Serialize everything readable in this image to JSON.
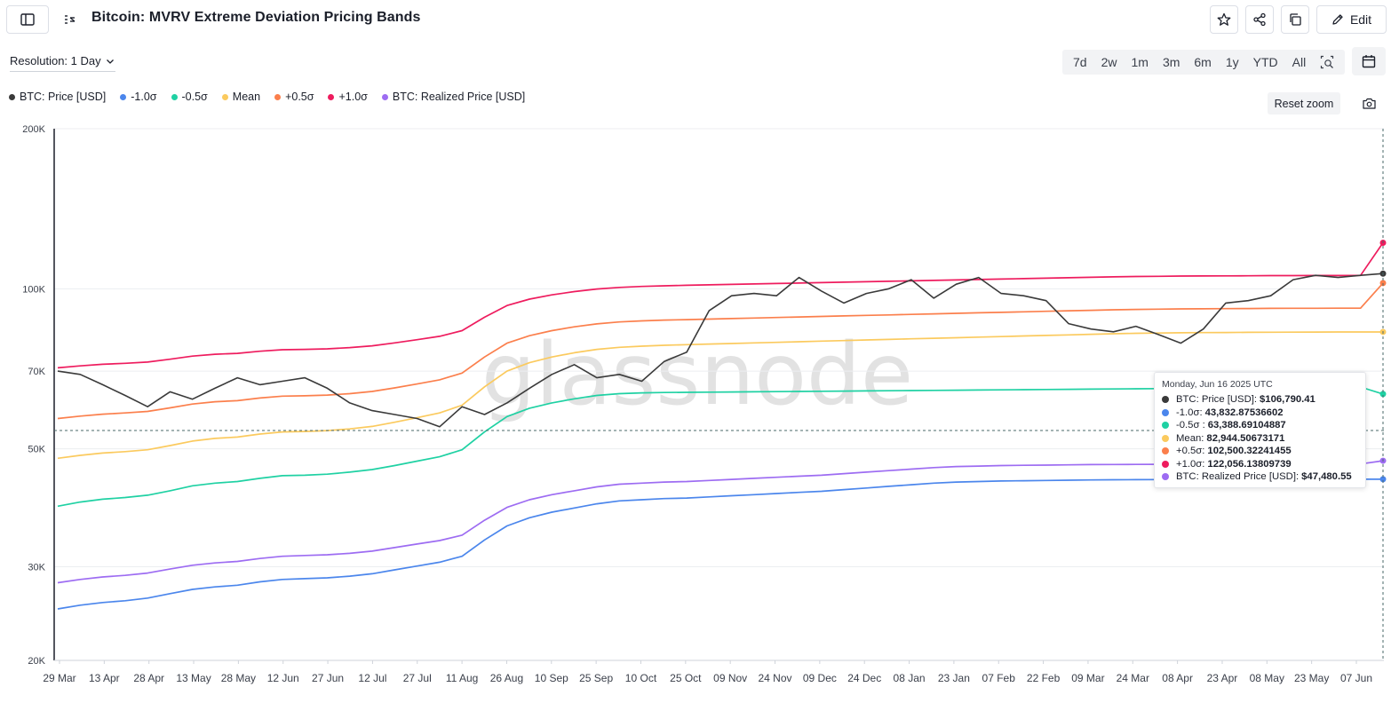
{
  "header": {
    "title": "Bitcoin: MVRV Extreme Deviation Pricing Bands",
    "edit_label": "Edit"
  },
  "toolbar": {
    "resolution_label": "Resolution: 1 Day",
    "ranges": [
      "7d",
      "2w",
      "1m",
      "3m",
      "6m",
      "1y",
      "YTD",
      "All"
    ],
    "reset_zoom_label": "Reset zoom"
  },
  "watermark": "glassnode",
  "tooltip": {
    "date": "Monday, Jun 16 2025 UTC",
    "rows": [
      {
        "label": "BTC: Price [USD]",
        "value": "$106,790.41",
        "color": "#3a3a3a"
      },
      {
        "label": "-1.0σ",
        "value": "43,832.87536602",
        "color": "#4b86ec"
      },
      {
        "label": "-0.5σ ",
        "value": "63,388.69104887",
        "color": "#1fd1a3"
      },
      {
        "label": "Mean",
        "value": "82,944.50673171",
        "color": "#fbca5e"
      },
      {
        "label": "+0.5σ",
        "value": "102,500.32241455",
        "color": "#fb7f4c"
      },
      {
        "label": "+1.0σ",
        "value": "122,056.13809739",
        "color": "#ee1c5e"
      },
      {
        "label": "BTC: Realized Price [USD]",
        "value": "$47,480.55",
        "color": "#9d6cf2"
      }
    ]
  },
  "chart_data": {
    "type": "line",
    "log_scale": true,
    "ylim": [
      20000,
      200000
    ],
    "y_ticks": [
      {
        "value": 20000,
        "label": "20K"
      },
      {
        "value": 30000,
        "label": "30K"
      },
      {
        "value": 50000,
        "label": "50K"
      },
      {
        "value": 70000,
        "label": "70K"
      },
      {
        "value": 100000,
        "label": "100K"
      },
      {
        "value": 200000,
        "label": "200K"
      }
    ],
    "x_tick_labels": [
      "29 Mar",
      "13 Apr",
      "28 Apr",
      "13 May",
      "28 May",
      "12 Jun",
      "27 Jun",
      "12 Jul",
      "27 Jul",
      "11 Aug",
      "26 Aug",
      "10 Sep",
      "25 Sep",
      "10 Oct",
      "25 Oct",
      "09 Nov",
      "24 Nov",
      "09 Dec",
      "24 Dec",
      "08 Jan",
      "23 Jan",
      "07 Feb",
      "22 Feb",
      "09 Mar",
      "24 Mar",
      "08 Apr",
      "23 Apr",
      "08 May",
      "23 May",
      "07 Jun"
    ],
    "x_range": [
      "29 Mar",
      "16 Jun"
    ],
    "grid": true,
    "legend_position": "top-left",
    "series": [
      {
        "name": "BTC: Price [USD]",
        "color": "#3a3a3a",
        "values": [
          70000,
          69000,
          66000,
          63000,
          60000,
          64000,
          62000,
          65000,
          68000,
          66000,
          67000,
          68000,
          65000,
          61000,
          59000,
          58000,
          57000,
          55000,
          60000,
          58000,
          61000,
          65000,
          69000,
          72000,
          68000,
          69000,
          67000,
          73000,
          76000,
          91000,
          97000,
          98000,
          97000,
          105000,
          99000,
          94000,
          98000,
          100000,
          104000,
          96000,
          102000,
          105000,
          98000,
          97000,
          95000,
          86000,
          84000,
          83000,
          85000,
          82000,
          79000,
          84000,
          94000,
          95000,
          97000,
          104000,
          106000,
          105000,
          106000,
          106790
        ]
      },
      {
        "name": "-1.0σ",
        "color": "#4b86ec",
        "values": [
          25000,
          25400,
          25700,
          25900,
          26200,
          26700,
          27200,
          27500,
          27700,
          28100,
          28400,
          28500,
          28600,
          28800,
          29100,
          29600,
          30100,
          30600,
          31400,
          33700,
          35800,
          37100,
          38000,
          38700,
          39400,
          39900,
          40100,
          40300,
          40400,
          40600,
          40800,
          41000,
          41200,
          41400,
          41600,
          41900,
          42200,
          42500,
          42800,
          43100,
          43300,
          43400,
          43500,
          43550,
          43600,
          43650,
          43700,
          43720,
          43740,
          43760,
          43780,
          43790,
          43800,
          43810,
          43815,
          43820,
          43825,
          43828,
          43830,
          43833
        ]
      },
      {
        "name": "-0.5σ",
        "color": "#1fd1a3",
        "values": [
          39000,
          39700,
          40200,
          40500,
          40900,
          41700,
          42600,
          43100,
          43400,
          44000,
          44500,
          44600,
          44800,
          45200,
          45700,
          46500,
          47400,
          48300,
          49800,
          53800,
          57500,
          59600,
          61000,
          62100,
          63000,
          63500,
          63700,
          63800,
          63850,
          63900,
          63950,
          64000,
          64050,
          64100,
          64150,
          64200,
          64250,
          64300,
          64350,
          64400,
          64450,
          64500,
          64550,
          64600,
          64650,
          64700,
          64750,
          64800,
          64850,
          64900,
          64950,
          65000,
          65050,
          65100,
          65150,
          65200,
          65250,
          65300,
          65350,
          63389
        ]
      },
      {
        "name": "Mean",
        "color": "#fbca5e",
        "values": [
          48000,
          48600,
          49100,
          49400,
          49800,
          50700,
          51700,
          52300,
          52600,
          53300,
          53800,
          53900,
          54100,
          54500,
          55100,
          56100,
          57200,
          58400,
          60400,
          65400,
          70000,
          72600,
          74400,
          75800,
          76900,
          77600,
          78000,
          78300,
          78500,
          78700,
          78900,
          79100,
          79300,
          79500,
          79700,
          79900,
          80100,
          80300,
          80500,
          80700,
          80900,
          81100,
          81300,
          81500,
          81700,
          81900,
          82100,
          82300,
          82450,
          82550,
          82650,
          82700,
          82750,
          82800,
          82850,
          82880,
          82900,
          82920,
          82935,
          82945
        ]
      },
      {
        "name": "+0.5σ",
        "color": "#fb7f4c",
        "values": [
          57000,
          57600,
          58100,
          58400,
          58800,
          59700,
          60700,
          61300,
          61600,
          62300,
          62800,
          62900,
          63100,
          63500,
          64100,
          65100,
          66200,
          67400,
          69400,
          74400,
          79000,
          81600,
          83400,
          84800,
          85900,
          86600,
          87000,
          87300,
          87500,
          87700,
          87900,
          88100,
          88300,
          88500,
          88700,
          88900,
          89100,
          89300,
          89500,
          89700,
          89900,
          90100,
          90300,
          90500,
          90700,
          90900,
          91100,
          91300,
          91450,
          91550,
          91650,
          91700,
          91750,
          91800,
          91850,
          91880,
          91900,
          91920,
          91935,
          102500
        ]
      },
      {
        "name": "+1.0σ",
        "color": "#ee1c5e",
        "values": [
          71000,
          71600,
          72100,
          72400,
          72800,
          73700,
          74700,
          75300,
          75600,
          76300,
          76800,
          76900,
          77100,
          77500,
          78100,
          79100,
          80200,
          81400,
          83400,
          88400,
          93000,
          95600,
          97400,
          98800,
          99900,
          100600,
          101000,
          101300,
          101500,
          101700,
          101900,
          102100,
          102300,
          102500,
          102700,
          102900,
          103100,
          103300,
          103500,
          103700,
          103900,
          104100,
          104300,
          104500,
          104700,
          104900,
          105100,
          105300,
          105450,
          105550,
          105650,
          105700,
          105750,
          105800,
          105850,
          105880,
          105900,
          105920,
          105935,
          122056
        ]
      },
      {
        "name": "BTC: Realized Price [USD]",
        "color": "#9d6cf2",
        "values": [
          28000,
          28400,
          28700,
          28900,
          29200,
          29700,
          30200,
          30500,
          30700,
          31100,
          31400,
          31500,
          31600,
          31800,
          32100,
          32600,
          33100,
          33600,
          34400,
          36700,
          38800,
          40100,
          41000,
          41700,
          42400,
          42900,
          43100,
          43300,
          43400,
          43600,
          43800,
          44000,
          44200,
          44400,
          44600,
          44900,
          45200,
          45500,
          45800,
          46100,
          46300,
          46400,
          46500,
          46550,
          46600,
          46650,
          46700,
          46720,
          46740,
          46760,
          46780,
          46790,
          46800,
          46810,
          46815,
          46820,
          46825,
          46828,
          46830,
          47481
        ]
      }
    ]
  }
}
